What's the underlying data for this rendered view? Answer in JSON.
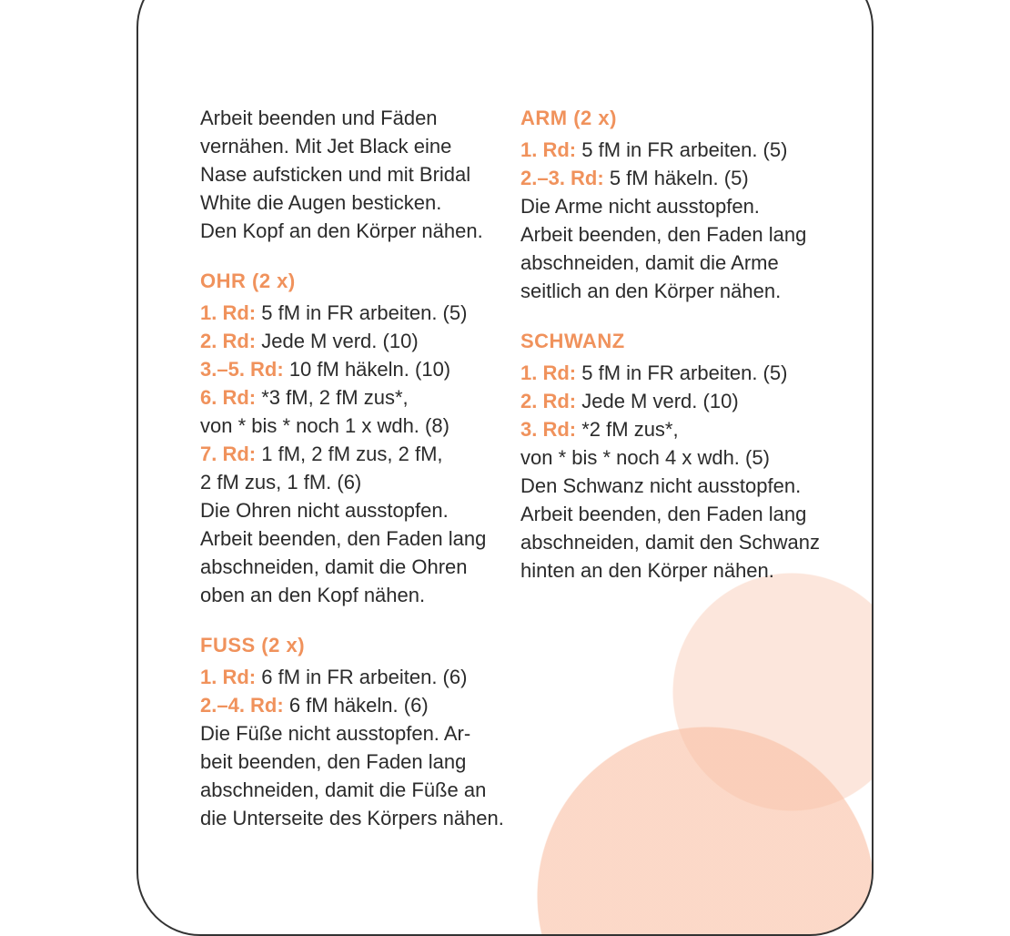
{
  "accent_color": "#f0925c",
  "left": {
    "intro": [
      "Arbeit beenden und Fäden",
      "vernähen. Mit Jet Black eine",
      "Nase aufsticken und mit Bridal",
      "White die Augen besticken.",
      "Den Kopf an den Körper nähen."
    ],
    "ohr": {
      "title": "OHR (2 x)",
      "lines": [
        {
          "b": "1. Rd:",
          "t": " 5 fM in FR arbeiten. (5)"
        },
        {
          "b": "2. Rd:",
          "t": " Jede M verd. (10)"
        },
        {
          "b": "3.–5. Rd:",
          "t": " 10 fM häkeln. (10)"
        },
        {
          "b": "6. Rd:",
          "t": " *3 fM, 2 fM zus*,"
        },
        {
          "b": "",
          "t": "von * bis * noch 1 x wdh. (8)"
        },
        {
          "b": "7. Rd:",
          "t": " 1 fM, 2 fM zus, 2 fM,"
        },
        {
          "b": "",
          "t": "2 fM zus, 1 fM. (6)"
        },
        {
          "b": "",
          "t": "Die Ohren nicht ausstopfen."
        },
        {
          "b": "",
          "t": "Arbeit beenden, den Faden lang"
        },
        {
          "b": "",
          "t": "abschneiden, damit die Ohren"
        },
        {
          "b": "",
          "t": "oben an den Kopf nähen."
        }
      ]
    },
    "fuss": {
      "title": "FUSS (2 x)",
      "lines": [
        {
          "b": "1. Rd:",
          "t": " 6 fM in FR arbeiten. (6)"
        },
        {
          "b": "2.–4. Rd:",
          "t": " 6 fM häkeln. (6)"
        },
        {
          "b": "",
          "t": "Die Füße nicht ausstopfen. Ar-"
        },
        {
          "b": "",
          "t": "beit beenden, den Faden lang"
        },
        {
          "b": "",
          "t": "abschneiden, damit die Füße an"
        },
        {
          "b": "",
          "t": "die Unterseite des Körpers nähen."
        }
      ]
    }
  },
  "right": {
    "arm": {
      "title": "ARM (2 x)",
      "lines": [
        {
          "b": "1. Rd:",
          "t": " 5 fM in FR arbeiten. (5)"
        },
        {
          "b": "2.–3. Rd:",
          "t": " 5 fM häkeln. (5)"
        },
        {
          "b": "",
          "t": "Die Arme nicht ausstopfen."
        },
        {
          "b": "",
          "t": "Arbeit beenden, den Faden lang"
        },
        {
          "b": "",
          "t": "abschneiden, damit die Arme"
        },
        {
          "b": "",
          "t": "seitlich an den Körper nähen."
        }
      ]
    },
    "schwanz": {
      "title": "SCHWANZ",
      "lines": [
        {
          "b": "1. Rd:",
          "t": " 5 fM in FR arbeiten. (5)"
        },
        {
          "b": "2. Rd:",
          "t": " Jede M verd. (10)"
        },
        {
          "b": "3. Rd:",
          "t": " *2 fM zus*,"
        },
        {
          "b": "",
          "t": "von * bis * noch 4 x wdh. (5)"
        },
        {
          "b": "",
          "t": "Den Schwanz nicht ausstopfen."
        },
        {
          "b": "",
          "t": "Arbeit beenden, den Faden lang"
        },
        {
          "b": "",
          "t": "abschneiden, damit den Schwanz"
        },
        {
          "b": "",
          "t": "hinten an den Körper nähen."
        }
      ]
    }
  }
}
